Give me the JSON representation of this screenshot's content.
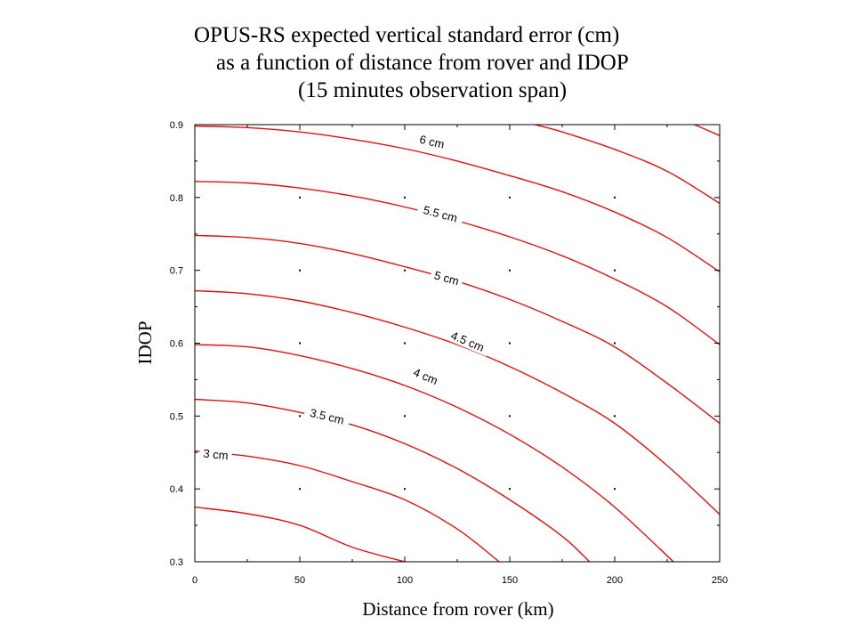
{
  "chart_data": {
    "type": "contour",
    "title_lines": [
      "OPUS-RS expected vertical standard error (cm)",
      "as a function of distance from rover and IDOP",
      "(15 minutes observation span)"
    ],
    "xlabel": "Distance from rover (km)",
    "ylabel": "IDOP",
    "xlim": [
      0,
      250
    ],
    "ylim": [
      0.3,
      0.9
    ],
    "x_ticks": [
      "0",
      "50",
      "100",
      "150",
      "200",
      "250"
    ],
    "y_ticks": [
      "0.3",
      "0.4",
      "0.5",
      "0.6",
      "0.7",
      "0.8",
      "0.9"
    ],
    "grid": false,
    "line_color": "#dd1111",
    "sample_points": {
      "x": [
        50,
        100,
        150,
        200
      ],
      "y": [
        0.4,
        0.5,
        0.6,
        0.7,
        0.8
      ]
    },
    "contours": [
      {
        "label": "",
        "points": [
          [
            0,
            0.375
          ],
          [
            25,
            0.366
          ],
          [
            50,
            0.35
          ],
          [
            75,
            0.32
          ],
          [
            100,
            0.3
          ]
        ]
      },
      {
        "label": "3 cm",
        "label_at": [
          10,
          0.448
        ],
        "points": [
          [
            0,
            0.452
          ],
          [
            25,
            0.445
          ],
          [
            50,
            0.432
          ],
          [
            75,
            0.41
          ],
          [
            100,
            0.385
          ],
          [
            125,
            0.345
          ],
          [
            145,
            0.3
          ]
        ]
      },
      {
        "label": "3.5 cm",
        "label_at": [
          63,
          0.5
        ],
        "points": [
          [
            0,
            0.523
          ],
          [
            25,
            0.518
          ],
          [
            50,
            0.505
          ],
          [
            75,
            0.488
          ],
          [
            100,
            0.462
          ],
          [
            125,
            0.428
          ],
          [
            150,
            0.385
          ],
          [
            175,
            0.335
          ],
          [
            188,
            0.3
          ]
        ]
      },
      {
        "label": "4 cm",
        "label_at": [
          110,
          0.555
        ],
        "points": [
          [
            0,
            0.598
          ],
          [
            25,
            0.595
          ],
          [
            50,
            0.583
          ],
          [
            75,
            0.565
          ],
          [
            100,
            0.542
          ],
          [
            125,
            0.512
          ],
          [
            150,
            0.475
          ],
          [
            175,
            0.43
          ],
          [
            200,
            0.375
          ],
          [
            228,
            0.3
          ]
        ]
      },
      {
        "label": "4.5 cm",
        "label_at": [
          130,
          0.603
        ],
        "points": [
          [
            0,
            0.672
          ],
          [
            25,
            0.668
          ],
          [
            50,
            0.658
          ],
          [
            75,
            0.642
          ],
          [
            100,
            0.622
          ],
          [
            125,
            0.598
          ],
          [
            150,
            0.568
          ],
          [
            175,
            0.532
          ],
          [
            200,
            0.49
          ],
          [
            225,
            0.432
          ],
          [
            250,
            0.365
          ]
        ]
      },
      {
        "label": "5 cm",
        "label_at": [
          120,
          0.69
        ],
        "points": [
          [
            0,
            0.748
          ],
          [
            25,
            0.745
          ],
          [
            50,
            0.737
          ],
          [
            75,
            0.723
          ],
          [
            100,
            0.705
          ],
          [
            125,
            0.685
          ],
          [
            150,
            0.66
          ],
          [
            175,
            0.63
          ],
          [
            200,
            0.595
          ],
          [
            225,
            0.545
          ],
          [
            250,
            0.49
          ]
        ]
      },
      {
        "label": "5.5 cm",
        "label_at": [
          117,
          0.778
        ],
        "points": [
          [
            0,
            0.822
          ],
          [
            25,
            0.82
          ],
          [
            50,
            0.813
          ],
          [
            75,
            0.802
          ],
          [
            100,
            0.787
          ],
          [
            125,
            0.768
          ],
          [
            150,
            0.746
          ],
          [
            175,
            0.72
          ],
          [
            200,
            0.688
          ],
          [
            225,
            0.65
          ],
          [
            250,
            0.598
          ]
        ]
      },
      {
        "label": "6 cm",
        "label_at": [
          113,
          0.877
        ],
        "points": [
          [
            0,
            0.898
          ],
          [
            25,
            0.896
          ],
          [
            50,
            0.89
          ],
          [
            75,
            0.88
          ],
          [
            100,
            0.867
          ],
          [
            125,
            0.85
          ],
          [
            150,
            0.83
          ],
          [
            175,
            0.808
          ],
          [
            200,
            0.78
          ],
          [
            225,
            0.745
          ],
          [
            250,
            0.698
          ]
        ]
      },
      {
        "label": "",
        "points": [
          [
            162,
            0.9
          ],
          [
            175,
            0.89
          ],
          [
            200,
            0.866
          ],
          [
            225,
            0.836
          ],
          [
            250,
            0.792
          ]
        ]
      },
      {
        "label": "",
        "points": [
          [
            238,
            0.9
          ],
          [
            250,
            0.885
          ]
        ]
      }
    ]
  }
}
